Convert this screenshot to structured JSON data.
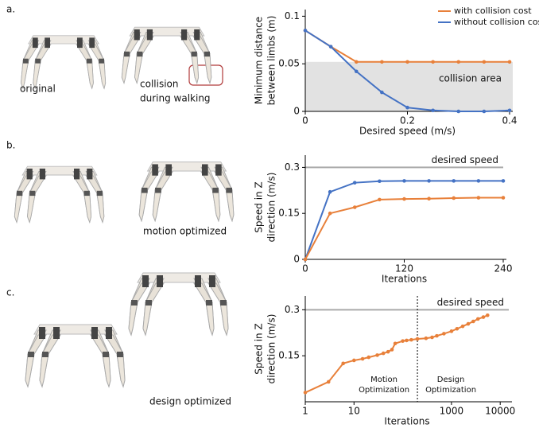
{
  "panels": [
    {
      "label": "a.",
      "captions": [
        [
          "original"
        ],
        [
          "collision",
          "during walking"
        ]
      ]
    },
    {
      "label": "b.",
      "captions": [
        [
          "motion optimized"
        ]
      ]
    },
    {
      "label": "c.",
      "captions": [
        [
          "design optimized"
        ]
      ]
    }
  ],
  "chart_data": [
    {
      "type": "line",
      "ylabel": [
        "Minimum distance",
        "between limbs (m)"
      ],
      "xlabel": "Desired speed (m/s)",
      "x": [
        0,
        0.05,
        0.1,
        0.15,
        0.2,
        0.25,
        0.3,
        0.35,
        0.4
      ],
      "series": [
        {
          "name": "with collision cost",
          "color": "#e8803a",
          "values": [
            0.085,
            0.068,
            0.052,
            0.052,
            0.052,
            0.052,
            0.052,
            0.052,
            0.052
          ]
        },
        {
          "name": "without collision cost",
          "color": "#4472c4",
          "values": [
            0.085,
            0.068,
            0.042,
            0.02,
            0.004,
            0.001,
            0,
            0,
            0.001
          ]
        }
      ],
      "band": {
        "from": 0,
        "to": 0.052,
        "label": "collision area",
        "color": "#e2e2e2"
      },
      "xlim": [
        0,
        0.4
      ],
      "xticks": [
        0,
        0.2,
        0.4
      ],
      "ylim": [
        0,
        0.107
      ],
      "yticks": [
        0,
        0.05,
        0.1
      ],
      "legend": "top-right"
    },
    {
      "type": "line",
      "ylabel": [
        "Speed in Z",
        "direction (m/s)"
      ],
      "xlabel": "Iterations",
      "x": [
        0,
        30,
        60,
        90,
        120,
        150,
        180,
        210,
        240
      ],
      "series": [
        {
          "name": "without collision cost",
          "color": "#4472c4",
          "values": [
            0,
            0.22,
            0.25,
            0.255,
            0.256,
            0.256,
            0.256,
            0.256,
            0.256
          ]
        },
        {
          "name": "with collision cost",
          "color": "#e8803a",
          "values": [
            0,
            0.15,
            0.17,
            0.195,
            0.197,
            0.198,
            0.2,
            0.201,
            0.201
          ]
        }
      ],
      "reference": {
        "value": 0.3,
        "label": "desired speed",
        "color": "#aaaaaa"
      },
      "xlim": [
        0,
        240
      ],
      "xticks": [
        0,
        120,
        240
      ],
      "ylim": [
        0,
        0.34
      ],
      "yticks": [
        0,
        0.15,
        0.3
      ]
    },
    {
      "type": "line",
      "ylabel": [
        "Speed in Z",
        "direction (m/s)"
      ],
      "xlabel": "Iterations",
      "log_x": true,
      "x": [
        1,
        3,
        6,
        10,
        15,
        20,
        30,
        40,
        50,
        60,
        70,
        100,
        120,
        150,
        200,
        300,
        400,
        500,
        700,
        1000,
        1300,
        1700,
        2200,
        2800,
        3500,
        4500,
        5500
      ],
      "series": [
        {
          "name": "with collision cost",
          "color": "#e8803a",
          "values": [
            0.03,
            0.065,
            0.125,
            0.135,
            0.14,
            0.145,
            0.152,
            0.158,
            0.163,
            0.17,
            0.19,
            0.198,
            0.2,
            0.202,
            0.205,
            0.207,
            0.21,
            0.215,
            0.222,
            0.23,
            0.238,
            0.246,
            0.254,
            0.262,
            0.27,
            0.276,
            0.282
          ]
        }
      ],
      "reference": {
        "value": 0.3,
        "label": "desired speed",
        "color": "#aaaaaa"
      },
      "divider": {
        "value": 200,
        "left_label": [
          "Motion",
          "Optimization"
        ],
        "right_label": [
          "Design",
          "Optimization"
        ]
      },
      "xlim": [
        1,
        15000
      ],
      "xticks": [
        1,
        10,
        1000,
        10000
      ],
      "ylim": [
        0,
        0.345
      ],
      "yticks": [
        0.15,
        0.3
      ]
    }
  ]
}
